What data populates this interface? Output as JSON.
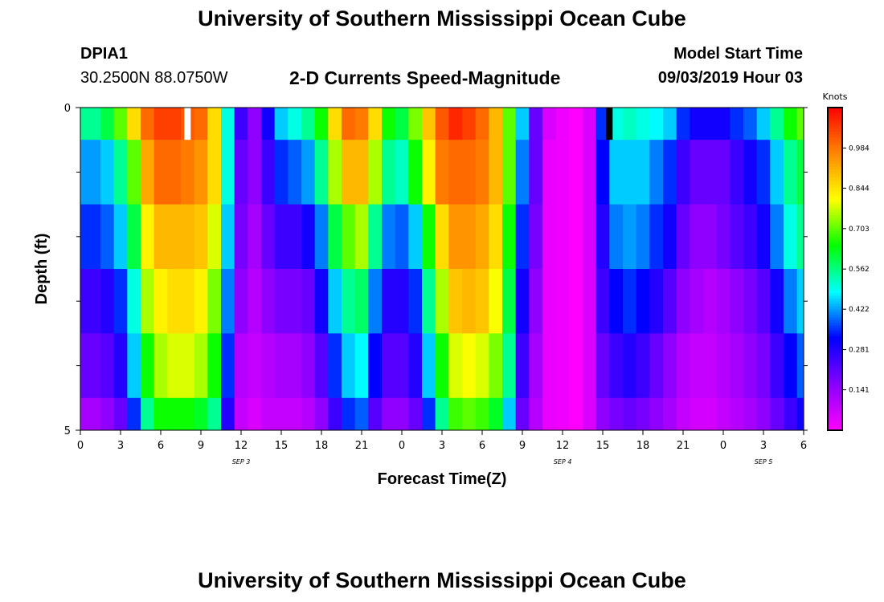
{
  "page": {
    "top_title": "University of Southern Mississippi Ocean Cube",
    "bottom_title": "University of Southern Mississippi Ocean Cube",
    "station_id": "DPIA1",
    "station_coords": "30.2500N 88.0750W",
    "plot_title": "2-D Currents Speed-Magnitude",
    "model_start_label": "Model Start Time",
    "model_start_value": "09/03/2019 Hour 03"
  },
  "chart_data": {
    "type": "heatmap",
    "title": "2-D Currents Speed-Magnitude",
    "xlabel": "Forecast Time(Z)",
    "ylabel": "Depth (ft)",
    "x_range": [
      0,
      54
    ],
    "y_range": [
      0,
      5
    ],
    "x_tick_values": [
      0,
      3,
      6,
      9,
      12,
      15,
      18,
      21,
      24,
      27,
      30,
      33,
      36,
      39,
      42,
      45,
      48,
      51,
      54
    ],
    "x_tick_labels": [
      "0",
      "3",
      "6",
      "9",
      "12",
      "15",
      "18",
      "21",
      "0",
      "3",
      "6",
      "9",
      "12",
      "15",
      "18",
      "21",
      "0",
      "3",
      "6"
    ],
    "y_tick_values": [
      0,
      5
    ],
    "y_tick_labels": [
      "0",
      "5"
    ],
    "y_minor_ticks": [
      1,
      2,
      3,
      4
    ],
    "date_labels": [
      {
        "x": 12,
        "text": "SEP 3"
      },
      {
        "x": 36,
        "text": "SEP 4"
      },
      {
        "x": 51,
        "text": "SEP 5"
      }
    ],
    "depth_layers": 6,
    "layer_depth_bounds": [
      0,
      0.5,
      1.5,
      2.5,
      3.5,
      4.5,
      5
    ],
    "speed_range": [
      0,
      1.125
    ],
    "series": [
      {
        "name": "surface",
        "depth": "0-0.5",
        "values": [
          0.55,
          0.55,
          0.6,
          0.7,
          0.85,
          1.0,
          1.05,
          1.05,
          1.02,
          1.0,
          0.85,
          0.5,
          0.25,
          0.15,
          0.3,
          0.45,
          0.5,
          0.55,
          0.65,
          0.85,
          1.0,
          0.98,
          0.85,
          0.65,
          0.6,
          0.72,
          0.88,
          1.02,
          1.08,
          1.05,
          1.0,
          0.9,
          0.7,
          0.45,
          0.2,
          0.05,
          0.02,
          0.0,
          0.05,
          0.35,
          0.5,
          0.52,
          0.5,
          0.48,
          0.45,
          0.35,
          0.3,
          0.3,
          0.3,
          0.35,
          0.38,
          0.45,
          0.55,
          0.65,
          0.7
        ]
      },
      {
        "name": "layer 2",
        "depth": "0.5-1.5",
        "values": [
          0.42,
          0.42,
          0.45,
          0.55,
          0.7,
          0.92,
          1.0,
          1.0,
          0.98,
          0.95,
          0.85,
          0.5,
          0.2,
          0.15,
          0.25,
          0.35,
          0.38,
          0.42,
          0.55,
          0.75,
          0.9,
          0.9,
          0.75,
          0.55,
          0.52,
          0.65,
          0.82,
          0.98,
          1.0,
          1.0,
          0.98,
          0.9,
          0.7,
          0.4,
          0.2,
          0.03,
          0.02,
          0.0,
          0.05,
          0.32,
          0.45,
          0.45,
          0.45,
          0.4,
          0.35,
          0.25,
          0.2,
          0.2,
          0.2,
          0.25,
          0.3,
          0.35,
          0.45,
          0.55,
          0.6
        ]
      },
      {
        "name": "layer 3",
        "depth": "1.5-2.5",
        "values": [
          0.35,
          0.35,
          0.38,
          0.45,
          0.6,
          0.82,
          0.9,
          0.9,
          0.9,
          0.88,
          0.78,
          0.45,
          0.18,
          0.12,
          0.2,
          0.25,
          0.25,
          0.3,
          0.4,
          0.6,
          0.7,
          0.75,
          0.55,
          0.4,
          0.38,
          0.45,
          0.65,
          0.85,
          0.95,
          0.95,
          0.92,
          0.85,
          0.65,
          0.35,
          0.18,
          0.03,
          0.02,
          0.0,
          0.05,
          0.28,
          0.4,
          0.42,
          0.4,
          0.35,
          0.3,
          0.2,
          0.15,
          0.15,
          0.18,
          0.22,
          0.25,
          0.3,
          0.4,
          0.5,
          0.55
        ]
      },
      {
        "name": "layer 4",
        "depth": "2.5-3.5",
        "values": [
          0.25,
          0.25,
          0.28,
          0.35,
          0.5,
          0.75,
          0.82,
          0.85,
          0.85,
          0.82,
          0.72,
          0.4,
          0.15,
          0.1,
          0.15,
          0.18,
          0.18,
          0.2,
          0.3,
          0.45,
          0.55,
          0.58,
          0.4,
          0.28,
          0.28,
          0.35,
          0.55,
          0.75,
          0.88,
          0.9,
          0.88,
          0.8,
          0.6,
          0.3,
          0.15,
          0.03,
          0.02,
          0.0,
          0.05,
          0.25,
          0.32,
          0.35,
          0.32,
          0.28,
          0.22,
          0.15,
          0.12,
          0.1,
          0.12,
          0.15,
          0.18,
          0.22,
          0.3,
          0.4,
          0.45
        ]
      },
      {
        "name": "layer 5",
        "depth": "3.5-4.5",
        "values": [
          0.2,
          0.2,
          0.22,
          0.28,
          0.45,
          0.65,
          0.75,
          0.78,
          0.78,
          0.75,
          0.65,
          0.35,
          0.1,
          0.08,
          0.1,
          0.12,
          0.12,
          0.15,
          0.22,
          0.35,
          0.45,
          0.48,
          0.32,
          0.22,
          0.22,
          0.28,
          0.45,
          0.65,
          0.78,
          0.8,
          0.78,
          0.72,
          0.55,
          0.25,
          0.12,
          0.03,
          0.02,
          0.0,
          0.05,
          0.2,
          0.25,
          0.28,
          0.25,
          0.2,
          0.15,
          0.1,
          0.08,
          0.08,
          0.1,
          0.12,
          0.15,
          0.18,
          0.25,
          0.32,
          0.38
        ]
      },
      {
        "name": "bottom",
        "depth": "4.5-5",
        "values": [
          0.12,
          0.12,
          0.15,
          0.2,
          0.35,
          0.55,
          0.65,
          0.65,
          0.65,
          0.62,
          0.55,
          0.28,
          0.08,
          0.05,
          0.08,
          0.08,
          0.08,
          0.1,
          0.15,
          0.25,
          0.35,
          0.38,
          0.22,
          0.15,
          0.15,
          0.2,
          0.35,
          0.55,
          0.68,
          0.7,
          0.68,
          0.62,
          0.45,
          0.2,
          0.1,
          0.03,
          0.02,
          0.0,
          0.05,
          0.15,
          0.18,
          0.2,
          0.18,
          0.15,
          0.12,
          0.08,
          0.06,
          0.06,
          0.08,
          0.1,
          0.12,
          0.15,
          0.2,
          0.25,
          0.3
        ]
      }
    ],
    "markers": [
      {
        "x": 8,
        "color": "#ffffff",
        "depth_range": [
          0,
          0.5
        ]
      },
      {
        "x": 39.5,
        "color": "#000000",
        "depth_range": [
          0,
          0.5
        ]
      }
    ],
    "colorbar": {
      "label": "Knots",
      "tick_labels": [
        "0.984",
        "0.844",
        "0.703",
        "0.562",
        "0.422",
        "0.281",
        "0.141"
      ],
      "tick_values": [
        0.984,
        0.844,
        0.703,
        0.562,
        0.422,
        0.281,
        0.141
      ],
      "range": [
        0,
        1.125
      ],
      "colors": [
        "#ff00ff",
        "#8800ff",
        "#0000ff",
        "#00ffff",
        "#00ff00",
        "#ffff00",
        "#ff8800",
        "#ff0000"
      ]
    }
  }
}
